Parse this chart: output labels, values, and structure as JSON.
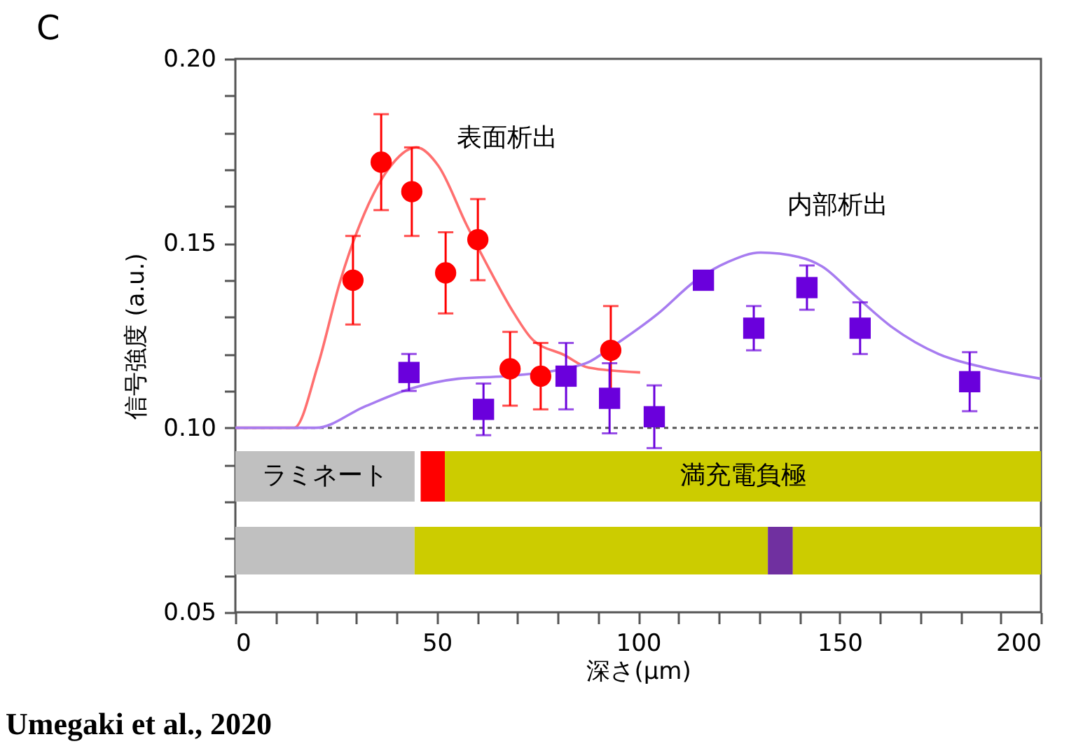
{
  "chart_data": {
    "type": "scatter",
    "xlabel": "深さ(μm)",
    "ylabel": "信号強度 (a.u.)",
    "xlim": [
      0,
      200
    ],
    "ylim": [
      0.05,
      0.2
    ],
    "xticks": [
      0,
      {
        "value": 10,
        "label": null
      },
      {
        "value": 20,
        "label": null
      },
      {
        "value": 30,
        "label": null
      },
      {
        "value": 40,
        "label": null
      },
      50,
      {
        "value": 60,
        "label": null
      },
      {
        "value": 70,
        "label": null
      },
      {
        "value": 80,
        "label": null
      },
      {
        "value": 90,
        "label": null
      },
      100,
      {
        "value": 110,
        "label": null
      },
      {
        "value": 120,
        "label": null
      },
      {
        "value": 130,
        "label": null
      },
      {
        "value": 140,
        "label": null
      },
      150,
      {
        "value": 160,
        "label": null
      },
      {
        "value": 170,
        "label": null
      },
      {
        "value": 180,
        "label": null
      },
      {
        "value": 190,
        "label": null
      },
      200
    ],
    "yticks": [
      {
        "value": 0.05,
        "label": "0.05"
      },
      {
        "value": 0.06,
        "label": null
      },
      {
        "value": 0.07,
        "label": null
      },
      {
        "value": 0.08,
        "label": null
      },
      {
        "value": 0.09,
        "label": null
      },
      {
        "value": 0.1,
        "label": "0.10"
      },
      {
        "value": 0.11,
        "label": null
      },
      {
        "value": 0.12,
        "label": null
      },
      {
        "value": 0.13,
        "label": null
      },
      {
        "value": 0.14,
        "label": null
      },
      {
        "value": 0.15,
        "label": "0.15"
      },
      {
        "value": 0.16,
        "label": null
      },
      {
        "value": 0.17,
        "label": null
      },
      {
        "value": 0.18,
        "label": null
      },
      {
        "value": 0.19,
        "label": null
      },
      {
        "value": 0.2,
        "label": "0.20"
      }
    ],
    "grid": false,
    "legend": false,
    "series": [
      {
        "type": "line",
        "color": "#ff6f6f",
        "marker": "none",
        "line_style": "solid",
        "x": [
          0,
          14.6,
          20.5,
          26.1,
          32,
          37.9,
          44.9,
          50.4,
          57.4,
          63.3,
          69.2,
          73.7,
          81.7,
          87.7,
          100.5
        ],
        "values": [
          0.1,
          0.1,
          0.117,
          0.14,
          0.158,
          0.17,
          0.176,
          0.171,
          0.155,
          0.1425,
          0.131,
          0.124,
          0.1197,
          0.1163,
          0.115
        ]
      },
      {
        "type": "line",
        "color": "#a77cf0",
        "marker": "none",
        "line_style": "solid",
        "x": [
          0,
          20,
          32,
          43.5,
          55.3,
          66.8,
          81.7,
          87.7,
          93.6,
          105,
          114.4,
          122.4,
          130.4,
          139.8,
          145.7,
          153.7,
          163,
          174.6,
          186,
          200
        ],
        "values": [
          0.1,
          0.1,
          0.1057,
          0.1106,
          0.1133,
          0.114,
          0.116,
          0.1178,
          0.122,
          0.131,
          0.14,
          0.145,
          0.1475,
          0.1463,
          0.1437,
          0.136,
          0.1273,
          0.12,
          0.1163,
          0.1133
        ]
      },
      {
        "color": "#ff0000",
        "marker": "circle",
        "x": [
          29.2,
          36.2,
          43.8,
          52.2,
          60.2,
          68.2,
          75.8,
          93.2
        ],
        "values": [
          0.14,
          0.172,
          0.164,
          0.142,
          0.151,
          0.116,
          0.114,
          0.121
        ],
        "errors": [
          0.012,
          0.013,
          0.012,
          0.011,
          0.011,
          0.01,
          0.009,
          0.012
        ]
      },
      {
        "color": "#6a00dc",
        "marker": "square",
        "x": [
          43.1,
          61.6,
          82.1,
          92.9,
          104,
          116.2,
          128.7,
          141.9,
          155.1,
          182.3
        ],
        "values": [
          0.115,
          0.105,
          0.114,
          0.108,
          0.103,
          0.14,
          0.127,
          0.138,
          0.127,
          0.1125
        ],
        "errors": [
          0.005,
          0.007,
          0.009,
          0.0095,
          0.0085,
          0.002,
          0.006,
          0.006,
          0.007,
          0.008
        ]
      }
    ],
    "ref_lines": [
      {
        "axis": "y",
        "value": 0.1,
        "color": "#555555",
        "line_style": "dotted"
      }
    ],
    "bands": [
      {
        "axis": "x",
        "from": 0,
        "to": 44.5,
        "label": "ラミネート",
        "color": "#c0c0c0"
      },
      {
        "axis": "x",
        "from": 46,
        "to": 52,
        "label": null,
        "color": "#ff0000"
      },
      {
        "axis": "x",
        "from": 52,
        "to": 200,
        "label": "満充電負極",
        "color": "#cccc00"
      },
      {
        "axis": "x",
        "from": 0,
        "to": 44.5,
        "label": null,
        "color": "#c0c0c0"
      },
      {
        "axis": "x",
        "from": 44.5,
        "to": 132.2,
        "label": null,
        "color": "#cccc00"
      },
      {
        "axis": "x",
        "from": 132.2,
        "to": 138.4,
        "label": null,
        "color": "#7030a0"
      },
      {
        "axis": "x",
        "from": 138.4,
        "to": 200,
        "label": null,
        "color": "#cccc00"
      }
    ],
    "annotations": [
      "C",
      "表面析出",
      "内部析出",
      "Umegaki et al., 2020"
    ]
  }
}
